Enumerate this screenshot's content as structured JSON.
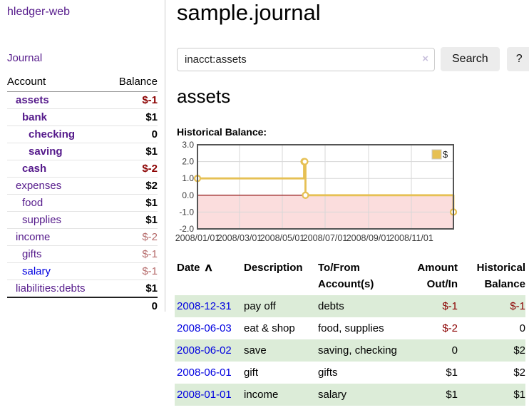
{
  "app": {
    "title": "hledger-web"
  },
  "sidebar": {
    "journal_link": "Journal",
    "accounts_header": {
      "account": "Account",
      "balance": "Balance"
    },
    "accounts": [
      {
        "name": "assets",
        "depth": 0,
        "bold": true,
        "balance": "$-1",
        "negative": "strong"
      },
      {
        "name": "bank",
        "depth": 1,
        "bold": true,
        "balance": "$1"
      },
      {
        "name": "checking",
        "depth": 2,
        "bold": true,
        "balance": "0"
      },
      {
        "name": "saving",
        "depth": 2,
        "bold": true,
        "balance": "$1"
      },
      {
        "name": "cash",
        "depth": 1,
        "bold": true,
        "balance": "$-2",
        "negative": "strong"
      },
      {
        "name": "expenses",
        "depth": 0,
        "bold": false,
        "balance": "$2"
      },
      {
        "name": "food",
        "depth": 1,
        "bold": false,
        "balance": "$1"
      },
      {
        "name": "supplies",
        "depth": 1,
        "bold": false,
        "balance": "$1"
      },
      {
        "name": "income",
        "depth": 0,
        "bold": false,
        "balance": "$-2",
        "negative": "muted"
      },
      {
        "name": "gifts",
        "depth": 1,
        "bold": false,
        "balance": "$-1",
        "negative": "muted"
      },
      {
        "name": "salary",
        "depth": 1,
        "bold": false,
        "balance": "$-1",
        "negative": "muted",
        "link_color": "blue"
      },
      {
        "name": "liabilities:debts",
        "depth": 0,
        "bold": false,
        "balance": "$1"
      }
    ],
    "total": "0"
  },
  "header": {
    "title": "sample.journal"
  },
  "search": {
    "value": "inacct:assets",
    "clear_label": "×",
    "button_label": "Search",
    "help_label": "?"
  },
  "main": {
    "heading": "assets",
    "chart_label": "Historical Balance:"
  },
  "chart_data": {
    "type": "line",
    "title": "Historical Balance",
    "step": true,
    "series": [
      {
        "name": "$",
        "x": [
          "2008-01-01",
          "2008-06-01",
          "2008-06-02",
          "2008-06-03",
          "2008-12-31"
        ],
        "y": [
          1,
          2,
          2,
          0,
          -1
        ]
      }
    ],
    "ylim": [
      -2,
      3
    ],
    "yticks": [
      3.0,
      2.0,
      1.0,
      0.0,
      -1.0,
      -2.0
    ],
    "xticks": [
      "2008/01/01",
      "2008/03/01",
      "2008/05/01",
      "2008/07/01",
      "2008/09/01",
      "2008/11/01"
    ],
    "legend": {
      "label": "$",
      "position": "top-right"
    },
    "grid": true,
    "colors": {
      "line": "#e6c054",
      "marker_fill": "#ffffff",
      "negative_region": "#fbdddd",
      "zero_line": "#8b0000",
      "grid": "#d7d7d7",
      "border": "#545454",
      "tick_text": "#3a3a3a"
    }
  },
  "register": {
    "headers": [
      "Date",
      "Description",
      "To/From Account(s)",
      "Amount Out/In",
      "Historical Balance"
    ],
    "sort_icon": "∧",
    "rows": [
      {
        "date": "2008-12-31",
        "description": "pay off",
        "accounts": "debts",
        "amount": "$-1",
        "amount_neg": true,
        "balance": "$-1",
        "balance_neg": true,
        "shaded": true
      },
      {
        "date": "2008-06-03",
        "description": "eat & shop",
        "accounts": "food, supplies",
        "amount": "$-2",
        "amount_neg": true,
        "balance": "0",
        "balance_neg": false,
        "shaded": false
      },
      {
        "date": "2008-06-02",
        "description": "save",
        "accounts": "saving, checking",
        "amount": "0",
        "amount_neg": false,
        "balance": "$2",
        "balance_neg": false,
        "shaded": true
      },
      {
        "date": "2008-06-01",
        "description": "gift",
        "accounts": "gifts",
        "amount": "$1",
        "amount_neg": false,
        "balance": "$2",
        "balance_neg": false,
        "shaded": false
      },
      {
        "date": "2008-01-01",
        "description": "income",
        "accounts": "salary",
        "amount": "$1",
        "amount_neg": false,
        "balance": "$1",
        "balance_neg": false,
        "shaded": true
      }
    ]
  },
  "colors": {
    "link_purple": "#551a8b",
    "link_blue": "#0000e0",
    "neg_strong": "#8b0000",
    "neg_muted": "#b56a6a",
    "row_green": "#dcecd8",
    "button_bg": "#ececec"
  }
}
